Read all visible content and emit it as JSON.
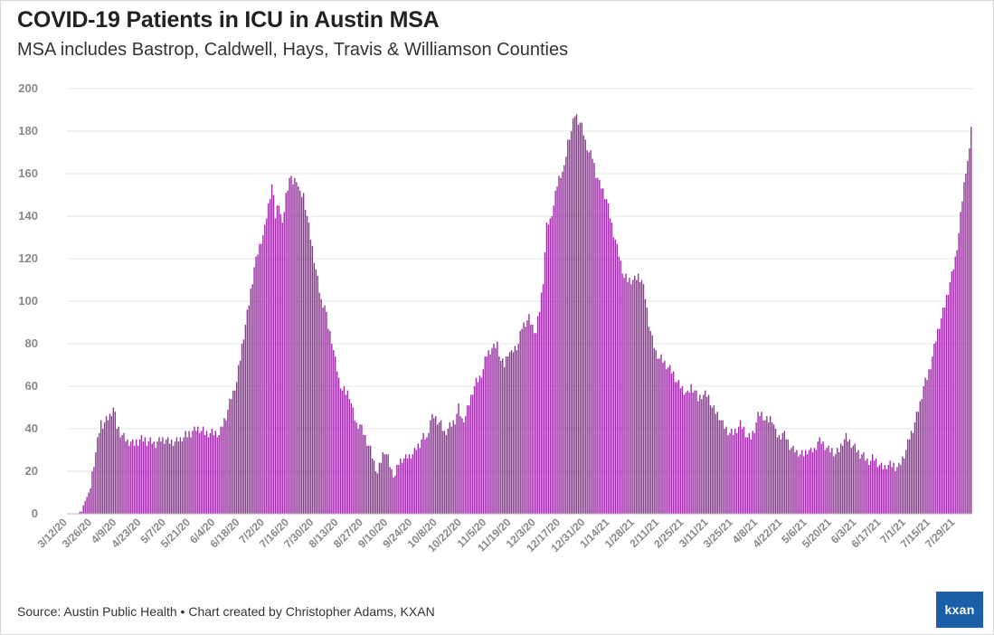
{
  "chart_data": {
    "type": "bar",
    "title": "COVID-19 Patients in ICU in Austin MSA",
    "subtitle": "MSA includes Bastrop, Caldwell, Hays, Travis & Williamson Counties",
    "xlabel": "",
    "ylabel": "",
    "ylim": [
      0,
      200
    ],
    "yticks": [
      "0",
      "20",
      "40",
      "60",
      "80",
      "100",
      "120",
      "140",
      "160",
      "180",
      "200"
    ],
    "xticks": [
      "3/12/20",
      "3/26/20",
      "4/9/20",
      "4/23/20",
      "5/7/20",
      "5/21/20",
      "6/4/20",
      "6/18/20",
      "7/2/20",
      "7/16/20",
      "7/30/20",
      "8/13/20",
      "8/27/20",
      "9/10/20",
      "9/24/20",
      "10/8/20",
      "10/22/20",
      "11/5/20",
      "11/19/20",
      "12/3/20",
      "12/17/20",
      "12/31/20",
      "1/14/21",
      "1/28/21",
      "2/11/21",
      "2/25/21",
      "3/11/21",
      "3/25/21",
      "4/8/21",
      "4/22/21",
      "5/6/21",
      "5/20/21",
      "6/3/21",
      "6/17/21",
      "7/1/21",
      "7/15/21",
      "7/29/21"
    ],
    "start_date": "3/12/20",
    "series": [
      {
        "name": "Patients in ICU",
        "color": "#9a2fa3",
        "anchors": [
          [
            0,
            0
          ],
          [
            6,
            0
          ],
          [
            8,
            1
          ],
          [
            10,
            6
          ],
          [
            12,
            10
          ],
          [
            13,
            13
          ],
          [
            15,
            24
          ],
          [
            17,
            34
          ],
          [
            19,
            43
          ],
          [
            20,
            42
          ],
          [
            22,
            44
          ],
          [
            24,
            46
          ],
          [
            26,
            50
          ],
          [
            28,
            41
          ],
          [
            30,
            38
          ],
          [
            34,
            34
          ],
          [
            38,
            33
          ],
          [
            42,
            35
          ],
          [
            46,
            34
          ],
          [
            50,
            33
          ],
          [
            54,
            35
          ],
          [
            58,
            34
          ],
          [
            62,
            34
          ],
          [
            66,
            36
          ],
          [
            70,
            38
          ],
          [
            74,
            40
          ],
          [
            78,
            38
          ],
          [
            82,
            38
          ],
          [
            84,
            38
          ],
          [
            86,
            37
          ],
          [
            90,
            46
          ],
          [
            93,
            55
          ],
          [
            96,
            62
          ],
          [
            100,
            84
          ],
          [
            103,
            99
          ],
          [
            106,
            116
          ],
          [
            109,
            126
          ],
          [
            112,
            134
          ],
          [
            114,
            145
          ],
          [
            116,
            155
          ],
          [
            118,
            140
          ],
          [
            120,
            147
          ],
          [
            122,
            135
          ],
          [
            124,
            150
          ],
          [
            126,
            158
          ],
          [
            128,
            156
          ],
          [
            130,
            158
          ],
          [
            132,
            150
          ],
          [
            134,
            150
          ],
          [
            136,
            140
          ],
          [
            138,
            130
          ],
          [
            140,
            120
          ],
          [
            142,
            110
          ],
          [
            144,
            100
          ],
          [
            146,
            98
          ],
          [
            148,
            88
          ],
          [
            150,
            82
          ],
          [
            152,
            72
          ],
          [
            154,
            63
          ],
          [
            156,
            58
          ],
          [
            158,
            57
          ],
          [
            160,
            56
          ],
          [
            162,
            48
          ],
          [
            164,
            42
          ],
          [
            166,
            42
          ],
          [
            168,
            38
          ],
          [
            170,
            34
          ],
          [
            172,
            30
          ],
          [
            174,
            24
          ],
          [
            176,
            19
          ],
          [
            178,
            25
          ],
          [
            180,
            30
          ],
          [
            182,
            26
          ],
          [
            184,
            20
          ],
          [
            186,
            18
          ],
          [
            188,
            24
          ],
          [
            190,
            26
          ],
          [
            192,
            26
          ],
          [
            196,
            28
          ],
          [
            200,
            33
          ],
          [
            202,
            36
          ],
          [
            204,
            35
          ],
          [
            206,
            44
          ],
          [
            208,
            46
          ],
          [
            210,
            44
          ],
          [
            212,
            42
          ],
          [
            214,
            38
          ],
          [
            216,
            40
          ],
          [
            218,
            42
          ],
          [
            220,
            44
          ],
          [
            222,
            50
          ],
          [
            224,
            44
          ],
          [
            226,
            46
          ],
          [
            228,
            52
          ],
          [
            230,
            58
          ],
          [
            232,
            62
          ],
          [
            234,
            64
          ],
          [
            236,
            68
          ],
          [
            238,
            75
          ],
          [
            240,
            77
          ],
          [
            242,
            78
          ],
          [
            244,
            80
          ],
          [
            246,
            72
          ],
          [
            248,
            70
          ],
          [
            250,
            76
          ],
          [
            252,
            75
          ],
          [
            254,
            78
          ],
          [
            256,
            80
          ],
          [
            258,
            88
          ],
          [
            260,
            90
          ],
          [
            262,
            92
          ],
          [
            264,
            88
          ],
          [
            266,
            85
          ],
          [
            268,
            96
          ],
          [
            270,
            110
          ],
          [
            272,
            135
          ],
          [
            274,
            138
          ],
          [
            276,
            145
          ],
          [
            278,
            155
          ],
          [
            280,
            160
          ],
          [
            282,
            162
          ],
          [
            284,
            175
          ],
          [
            286,
            180
          ],
          [
            288,
            188
          ],
          [
            290,
            185
          ],
          [
            292,
            182
          ],
          [
            294,
            175
          ],
          [
            296,
            170
          ],
          [
            298,
            168
          ],
          [
            300,
            160
          ],
          [
            302,
            155
          ],
          [
            304,
            152
          ],
          [
            306,
            148
          ],
          [
            308,
            140
          ],
          [
            310,
            132
          ],
          [
            312,
            125
          ],
          [
            314,
            118
          ],
          [
            316,
            111
          ],
          [
            318,
            110
          ],
          [
            322,
            110
          ],
          [
            324,
            112
          ],
          [
            326,
            110
          ],
          [
            328,
            102
          ],
          [
            330,
            90
          ],
          [
            332,
            82
          ],
          [
            334,
            76
          ],
          [
            336,
            73
          ],
          [
            338,
            72
          ],
          [
            340,
            70
          ],
          [
            342,
            68
          ],
          [
            344,
            66
          ],
          [
            346,
            62
          ],
          [
            348,
            60
          ],
          [
            350,
            58
          ],
          [
            352,
            56
          ],
          [
            354,
            60
          ],
          [
            356,
            58
          ],
          [
            358,
            54
          ],
          [
            360,
            56
          ],
          [
            362,
            56
          ],
          [
            364,
            55
          ],
          [
            366,
            50
          ],
          [
            368,
            48
          ],
          [
            370,
            46
          ],
          [
            372,
            42
          ],
          [
            374,
            40
          ],
          [
            376,
            38
          ],
          [
            378,
            38
          ],
          [
            380,
            40
          ],
          [
            382,
            42
          ],
          [
            384,
            40
          ],
          [
            386,
            36
          ],
          [
            388,
            36
          ],
          [
            390,
            40
          ],
          [
            392,
            46
          ],
          [
            394,
            47
          ],
          [
            396,
            44
          ],
          [
            398,
            44
          ],
          [
            400,
            45
          ],
          [
            402,
            38
          ],
          [
            404,
            36
          ],
          [
            406,
            38
          ],
          [
            408,
            36
          ],
          [
            410,
            32
          ],
          [
            412,
            30
          ],
          [
            414,
            29
          ],
          [
            416,
            28
          ],
          [
            418,
            28
          ],
          [
            420,
            30
          ],
          [
            422,
            29
          ],
          [
            424,
            30
          ],
          [
            426,
            34
          ],
          [
            428,
            34
          ],
          [
            430,
            32
          ],
          [
            432,
            30
          ],
          [
            434,
            30
          ],
          [
            436,
            28
          ],
          [
            438,
            30
          ],
          [
            440,
            34
          ],
          [
            442,
            36
          ],
          [
            444,
            34
          ],
          [
            446,
            32
          ],
          [
            448,
            30
          ],
          [
            450,
            28
          ],
          [
            452,
            27
          ],
          [
            454,
            25
          ],
          [
            456,
            25
          ],
          [
            458,
            26
          ],
          [
            460,
            24
          ],
          [
            462,
            22
          ],
          [
            464,
            22
          ],
          [
            466,
            23
          ],
          [
            468,
            23
          ],
          [
            470,
            22
          ],
          [
            472,
            22
          ],
          [
            474,
            26
          ],
          [
            476,
            30
          ],
          [
            478,
            36
          ],
          [
            480,
            40
          ],
          [
            482,
            46
          ],
          [
            484,
            52
          ],
          [
            486,
            60
          ],
          [
            488,
            64
          ],
          [
            490,
            70
          ],
          [
            492,
            78
          ],
          [
            494,
            86
          ],
          [
            496,
            92
          ],
          [
            498,
            98
          ],
          [
            500,
            105
          ],
          [
            502,
            112
          ],
          [
            504,
            120
          ],
          [
            506,
            132
          ],
          [
            508,
            148
          ],
          [
            510,
            162
          ],
          [
            512,
            170
          ],
          [
            513,
            183
          ]
        ]
      }
    ]
  },
  "footer": {
    "source": "Source: Austin Public Health • Chart created by Christopher Adams, KXAN",
    "logo_text": "kxan"
  }
}
